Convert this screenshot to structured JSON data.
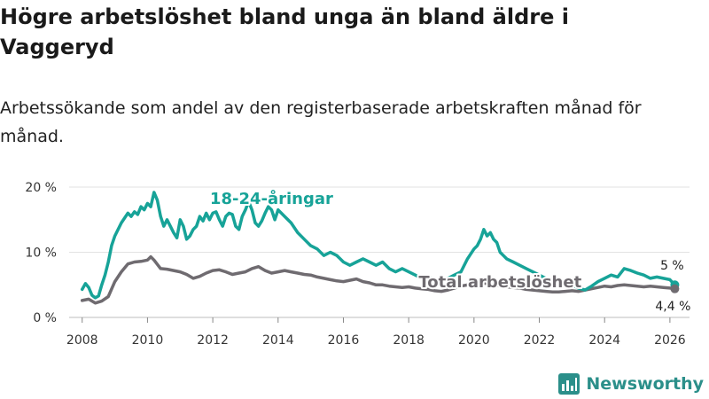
{
  "title": "Högre arbetslöshet bland unga än bland äldre i Vaggeryd",
  "subtitle": "Arbetssökande som andel av den registerbaserade arbetskraften månad för månad.",
  "brand": {
    "name": "Newsworthy"
  },
  "colors": {
    "youth": "#17a398",
    "total": "#6f6b70",
    "grid": "#e2e2e2",
    "brand": "#2b8f8a"
  },
  "chart_data": {
    "type": "line",
    "xlabel": "",
    "ylabel": "",
    "xlim": [
      2007.6,
      2026.6
    ],
    "ylim": [
      0,
      20
    ],
    "x_ticks": [
      2008,
      2010,
      2012,
      2014,
      2016,
      2018,
      2020,
      2022,
      2024,
      2026
    ],
    "y_ticks": [
      {
        "value": 0,
        "label": "0 %"
      },
      {
        "value": 10,
        "label": "10 %"
      },
      {
        "value": 20,
        "label": "20 %"
      }
    ],
    "series": [
      {
        "name": "18-24-åringar",
        "color": "#17a398",
        "end_label": "5 %",
        "x": [
          2008.0,
          2008.1,
          2008.2,
          2008.3,
          2008.4,
          2008.5,
          2008.6,
          2008.7,
          2008.8,
          2008.9,
          2009.0,
          2009.2,
          2009.4,
          2009.5,
          2009.6,
          2009.7,
          2009.8,
          2009.9,
          2010.0,
          2010.1,
          2010.2,
          2010.3,
          2010.4,
          2010.5,
          2010.6,
          2010.7,
          2010.8,
          2010.9,
          2011.0,
          2011.1,
          2011.2,
          2011.3,
          2011.4,
          2011.5,
          2011.6,
          2011.7,
          2011.8,
          2011.9,
          2012.0,
          2012.1,
          2012.2,
          2012.3,
          2012.4,
          2012.5,
          2012.6,
          2012.7,
          2012.8,
          2012.9,
          2013.0,
          2013.1,
          2013.2,
          2013.3,
          2013.4,
          2013.5,
          2013.6,
          2013.7,
          2013.8,
          2013.9,
          2014.0,
          2014.2,
          2014.4,
          2014.6,
          2014.8,
          2015.0,
          2015.2,
          2015.4,
          2015.6,
          2015.8,
          2016.0,
          2016.2,
          2016.4,
          2016.6,
          2016.8,
          2017.0,
          2017.2,
          2017.4,
          2017.6,
          2017.8,
          2018.0,
          2018.2,
          2018.4,
          2018.6,
          2018.8,
          2019.0,
          2019.2,
          2019.4,
          2019.6,
          2019.8,
          2020.0,
          2020.1,
          2020.2,
          2020.3,
          2020.4,
          2020.5,
          2020.6,
          2020.7,
          2020.8,
          2020.9,
          2021.0,
          2021.2,
          2021.4,
          2021.6,
          2021.8,
          2022.0,
          2022.2,
          2022.4,
          2022.6,
          2022.8,
          2023.0,
          2023.2,
          2023.4,
          2023.6,
          2023.8,
          2024.0,
          2024.2,
          2024.4,
          2024.6,
          2024.8,
          2025.0,
          2025.2,
          2025.4,
          2025.6,
          2025.8,
          2026.0,
          2026.15
        ],
        "y": [
          4.3,
          5.2,
          4.6,
          3.4,
          3.0,
          3.3,
          5.0,
          6.5,
          8.5,
          11.0,
          12.5,
          14.5,
          16.0,
          15.5,
          16.2,
          15.8,
          17.0,
          16.5,
          17.5,
          17.0,
          19.2,
          18.0,
          15.5,
          14.0,
          15.0,
          14.0,
          13.0,
          12.2,
          15.0,
          14.0,
          12.0,
          12.5,
          13.5,
          14.0,
          15.5,
          14.8,
          16.0,
          15.0,
          16.0,
          16.2,
          15.0,
          14.0,
          15.5,
          16.0,
          15.8,
          14.0,
          13.5,
          15.5,
          16.5,
          17.8,
          16.5,
          14.5,
          14.0,
          14.8,
          16.0,
          17.0,
          16.5,
          15.0,
          16.5,
          15.5,
          14.5,
          13.0,
          12.0,
          11.0,
          10.5,
          9.5,
          10.0,
          9.5,
          8.5,
          8.0,
          8.5,
          9.0,
          8.5,
          8.0,
          8.5,
          7.5,
          7.0,
          7.5,
          7.0,
          6.5,
          6.0,
          6.2,
          5.8,
          5.5,
          6.0,
          6.5,
          7.0,
          9.0,
          10.5,
          11.0,
          12.0,
          13.5,
          12.5,
          13.0,
          12.0,
          11.5,
          10.0,
          9.5,
          9.0,
          8.5,
          8.0,
          7.5,
          7.0,
          6.5,
          6.0,
          5.5,
          5.8,
          5.2,
          5.0,
          4.5,
          4.2,
          4.8,
          5.5,
          6.0,
          6.5,
          6.2,
          7.5,
          7.2,
          6.8,
          6.5,
          6.0,
          6.2,
          6.0,
          5.8,
          5.0
        ]
      },
      {
        "name": "Total arbetslöshet",
        "color": "#6f6b70",
        "end_label": "4,4 %",
        "x": [
          2008.0,
          2008.2,
          2008.4,
          2008.6,
          2008.8,
          2009.0,
          2009.2,
          2009.4,
          2009.6,
          2009.8,
          2010.0,
          2010.1,
          2010.2,
          2010.4,
          2010.6,
          2010.8,
          2011.0,
          2011.2,
          2011.4,
          2011.6,
          2011.8,
          2012.0,
          2012.2,
          2012.4,
          2012.6,
          2012.8,
          2013.0,
          2013.2,
          2013.4,
          2013.6,
          2013.8,
          2014.0,
          2014.2,
          2014.4,
          2014.6,
          2014.8,
          2015.0,
          2015.2,
          2015.4,
          2015.6,
          2015.8,
          2016.0,
          2016.2,
          2016.4,
          2016.6,
          2016.8,
          2017.0,
          2017.2,
          2017.4,
          2017.6,
          2017.8,
          2018.0,
          2018.2,
          2018.4,
          2018.6,
          2018.8,
          2019.0,
          2019.2,
          2019.4,
          2019.6,
          2019.8,
          2020.0,
          2020.2,
          2020.4,
          2020.6,
          2020.8,
          2021.0,
          2021.2,
          2021.4,
          2021.6,
          2021.8,
          2022.0,
          2022.2,
          2022.4,
          2022.6,
          2022.8,
          2023.0,
          2023.2,
          2023.4,
          2023.6,
          2023.8,
          2024.0,
          2024.2,
          2024.4,
          2024.6,
          2024.8,
          2025.0,
          2025.2,
          2025.4,
          2025.6,
          2025.8,
          2026.0,
          2026.15
        ],
        "y": [
          2.6,
          2.8,
          2.2,
          2.5,
          3.2,
          5.5,
          7.0,
          8.2,
          8.5,
          8.6,
          8.8,
          9.3,
          8.8,
          7.5,
          7.4,
          7.2,
          7.0,
          6.6,
          6.0,
          6.3,
          6.8,
          7.2,
          7.3,
          7.0,
          6.6,
          6.8,
          7.0,
          7.5,
          7.8,
          7.2,
          6.8,
          7.0,
          7.2,
          7.0,
          6.8,
          6.6,
          6.5,
          6.2,
          6.0,
          5.8,
          5.6,
          5.5,
          5.7,
          5.9,
          5.5,
          5.3,
          5.0,
          5.0,
          4.8,
          4.7,
          4.6,
          4.7,
          4.5,
          4.4,
          4.3,
          4.1,
          4.0,
          4.2,
          4.5,
          4.8,
          5.0,
          5.5,
          5.3,
          5.2,
          5.0,
          4.8,
          4.7,
          4.6,
          4.5,
          4.3,
          4.2,
          4.1,
          4.0,
          3.9,
          3.9,
          4.0,
          4.1,
          4.0,
          4.2,
          4.4,
          4.6,
          4.8,
          4.7,
          4.9,
          5.0,
          4.9,
          4.8,
          4.7,
          4.8,
          4.7,
          4.6,
          4.5,
          4.4
        ]
      }
    ],
    "annotations": [
      "18-24-åringar",
      "Total arbetslöshet"
    ]
  }
}
